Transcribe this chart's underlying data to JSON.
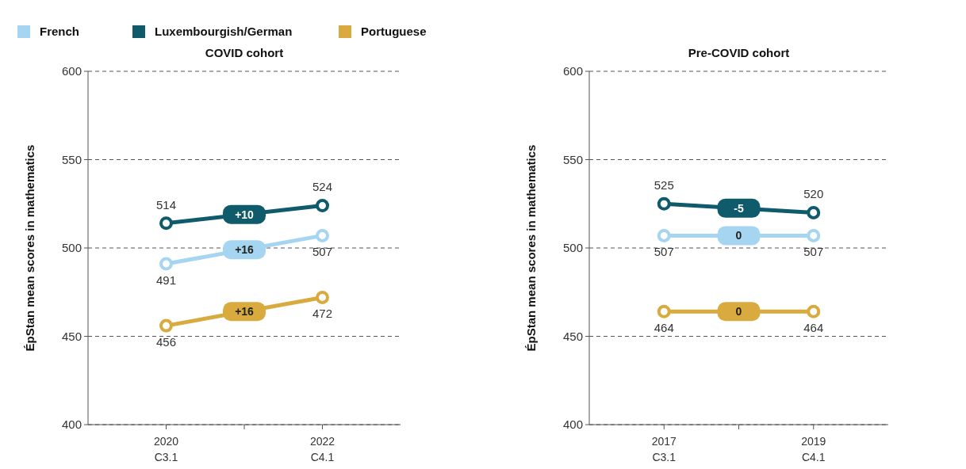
{
  "chart_data": [
    {
      "type": "line",
      "title": "COVID cohort",
      "ylabel": "ÉpStan mean scores in mathematics",
      "categories": [
        "2020\nC3.1",
        "2022\nC4.1"
      ],
      "ylim": [
        400,
        600
      ],
      "yticks": [
        400,
        450,
        500,
        550,
        600
      ],
      "grid": "y",
      "legend": "top left",
      "marker": "circle",
      "data_labels": true,
      "series": [
        {
          "name": "French",
          "color": "#a5d5f1",
          "values": [
            491,
            507
          ]
        },
        {
          "name": "Luxembourgish/German",
          "color": "#0f5a6b",
          "values": [
            514,
            524
          ]
        },
        {
          "name": "Portuguese",
          "color": "#d9ab3e",
          "values": [
            456,
            472
          ]
        }
      ],
      "annotations": [
        "+16",
        "+10",
        "+16"
      ]
    },
    {
      "type": "line",
      "title": "Pre-COVID cohort",
      "ylabel": "ÉpStan mean scores in mathematics",
      "categories": [
        "2017\nC3.1",
        "2019\nC4.1"
      ],
      "ylim": [
        400,
        600
      ],
      "yticks": [
        400,
        450,
        500,
        550,
        600
      ],
      "grid": "y",
      "marker": "circle",
      "data_labels": true,
      "series": [
        {
          "color": "#a5d5f1",
          "values": [
            507,
            507
          ]
        },
        {
          "color": "#0f5a6b",
          "values": [
            525,
            520
          ]
        },
        {
          "color": "#d9ab3e",
          "values": [
            464,
            464
          ]
        }
      ],
      "annotations": [
        "0",
        "-5",
        "0"
      ]
    }
  ]
}
